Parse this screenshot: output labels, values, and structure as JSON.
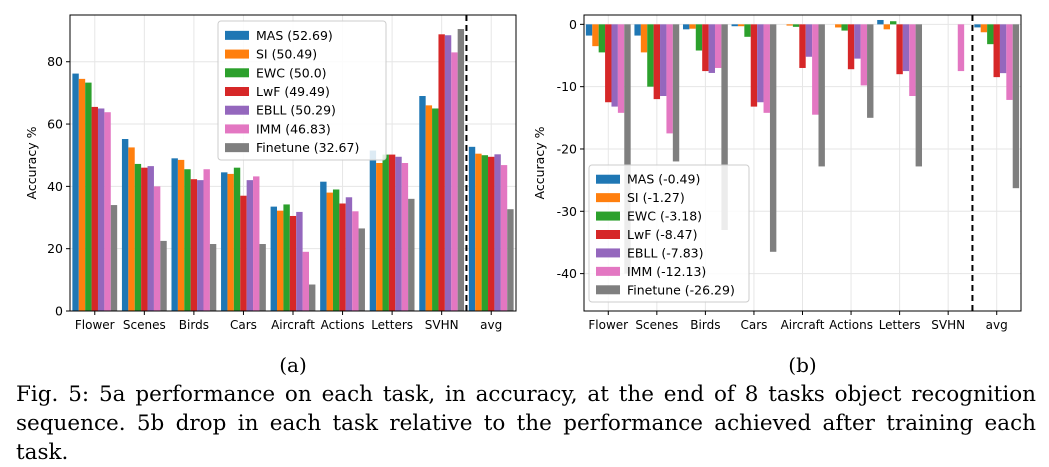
{
  "figure": {
    "caption_label": "Fig. 5:",
    "caption_text": "5a performance on each task, in accuracy, at the end of 8 tasks object recognition sequence. 5b drop in each task relative to the performance achieved after training each task."
  },
  "chart_data": [
    {
      "type": "bar",
      "panel_label": "(a)",
      "title": "",
      "xlabel": "",
      "ylabel": "Accuracy %",
      "ylim": [
        0,
        95
      ],
      "yticks": [
        0,
        20,
        40,
        60,
        80
      ],
      "grid": true,
      "legend_position": "top-center",
      "separator_after_category": "SVHN",
      "categories": [
        "Flower",
        "Scenes",
        "Birds",
        "Cars",
        "Aircraft",
        "Actions",
        "Letters",
        "SVHN",
        "avg"
      ],
      "series": [
        {
          "name": "MAS (52.69)",
          "color": "#1f77b4",
          "values": [
            76.2,
            55.2,
            49.0,
            44.5,
            33.5,
            41.5,
            51.5,
            69.0,
            52.69
          ]
        },
        {
          "name": "SI (50.49)",
          "color": "#ff7f0e",
          "values": [
            74.5,
            52.5,
            48.5,
            44.0,
            32.2,
            38.0,
            47.5,
            66.0,
            50.49
          ]
        },
        {
          "name": "EWC (50.0)",
          "color": "#2ca02c",
          "values": [
            73.3,
            47.2,
            45.5,
            46.0,
            34.2,
            39.0,
            50.2,
            65.0,
            50.0
          ]
        },
        {
          "name": "LwF (49.49)",
          "color": "#d62728",
          "values": [
            65.5,
            46.0,
            42.3,
            37.0,
            30.5,
            34.5,
            50.2,
            88.8,
            49.49
          ]
        },
        {
          "name": "EBLL (50.29)",
          "color": "#9467bd",
          "values": [
            65.0,
            46.5,
            42.0,
            42.0,
            31.8,
            36.5,
            49.5,
            88.5,
            50.29
          ]
        },
        {
          "name": "IMM (46.83)",
          "color": "#e377c2",
          "values": [
            63.8,
            40.0,
            45.5,
            43.2,
            19.0,
            32.0,
            47.5,
            83.0,
            46.83
          ]
        },
        {
          "name": "Finetune (32.67)",
          "color": "#7f7f7f",
          "values": [
            34.0,
            22.5,
            21.5,
            21.5,
            8.5,
            26.5,
            36.0,
            90.5,
            32.67
          ]
        }
      ]
    },
    {
      "type": "bar",
      "panel_label": "(b)",
      "title": "",
      "xlabel": "",
      "ylabel": "Accuracy %",
      "ylim": [
        -46,
        1.5
      ],
      "yticks": [
        0,
        -10,
        -20,
        -30,
        -40
      ],
      "grid": true,
      "legend_position": "lower-left",
      "separator_after_category": "SVHN",
      "categories": [
        "Flower",
        "Scenes",
        "Birds",
        "Cars",
        "Aircraft",
        "Actions",
        "Letters",
        "SVHN",
        "avg"
      ],
      "series": [
        {
          "name": "MAS (-0.49)",
          "color": "#1f77b4",
          "values": [
            -1.8,
            -1.8,
            -0.8,
            -0.3,
            0.0,
            0.0,
            0.7,
            0.0,
            -0.49
          ]
        },
        {
          "name": "SI (-1.27)",
          "color": "#ff7f0e",
          "values": [
            -3.5,
            -4.5,
            -0.7,
            -0.3,
            -0.2,
            -0.5,
            -0.8,
            0.0,
            -1.27
          ]
        },
        {
          "name": "EWC (-3.18)",
          "color": "#2ca02c",
          "values": [
            -4.5,
            -10.0,
            -4.2,
            -2.0,
            -0.4,
            -1.0,
            0.5,
            0.0,
            -3.18
          ]
        },
        {
          "name": "LwF (-8.47)",
          "color": "#d62728",
          "values": [
            -12.5,
            -12.0,
            -7.5,
            -13.2,
            -7.0,
            -7.2,
            -8.0,
            0.0,
            -8.47
          ]
        },
        {
          "name": "EBLL (-7.83)",
          "color": "#9467bd",
          "values": [
            -13.2,
            -11.5,
            -7.8,
            -12.5,
            -5.2,
            -5.5,
            -7.5,
            0.0,
            -7.83
          ]
        },
        {
          "name": "IMM (-12.13)",
          "color": "#e377c2",
          "values": [
            -14.2,
            -17.5,
            -7.0,
            -14.2,
            -14.5,
            -9.8,
            -11.5,
            -7.5,
            -12.13
          ]
        },
        {
          "name": "Finetune (-26.29)",
          "color": "#7f7f7f",
          "values": [
            -40.0,
            -22.0,
            -33.0,
            -36.5,
            -22.8,
            -15.0,
            -22.8,
            0.0,
            -26.29
          ]
        }
      ]
    }
  ]
}
